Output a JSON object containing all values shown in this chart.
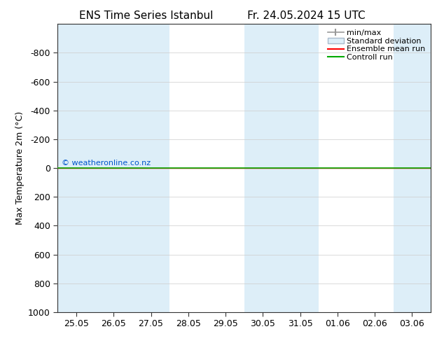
{
  "title": "ENS Time Series Istanbul",
  "title2": "Fr. 24.05.2024 15 UTC",
  "ylabel": "Max Temperature 2m (°C)",
  "xlim_dates": [
    "25.05",
    "26.05",
    "27.05",
    "28.05",
    "29.05",
    "30.05",
    "31.05",
    "01.06",
    "02.06",
    "03.06"
  ],
  "ylim": [
    -1000,
    1000
  ],
  "yticks": [
    -800,
    -600,
    -400,
    -200,
    0,
    200,
    400,
    600,
    800,
    1000
  ],
  "bg_color": "#ffffff",
  "plot_bg_color": "#ffffff",
  "shaded_cols": [
    0,
    1,
    2,
    5,
    6,
    9
  ],
  "shade_color": "#ddeef8",
  "green_line_y": 0,
  "red_line_y": 0,
  "copyright_text": "© weatheronline.co.nz",
  "copyright_color": "#0055cc",
  "legend_items": [
    "min/max",
    "Standard deviation",
    "Ensemble mean run",
    "Controll run"
  ],
  "legend_colors_line": [
    "#999999",
    "#aabbcc",
    "#ff0000",
    "#00aa00"
  ],
  "title_fontsize": 11,
  "axis_label_fontsize": 9,
  "tick_fontsize": 9,
  "legend_fontsize": 8
}
